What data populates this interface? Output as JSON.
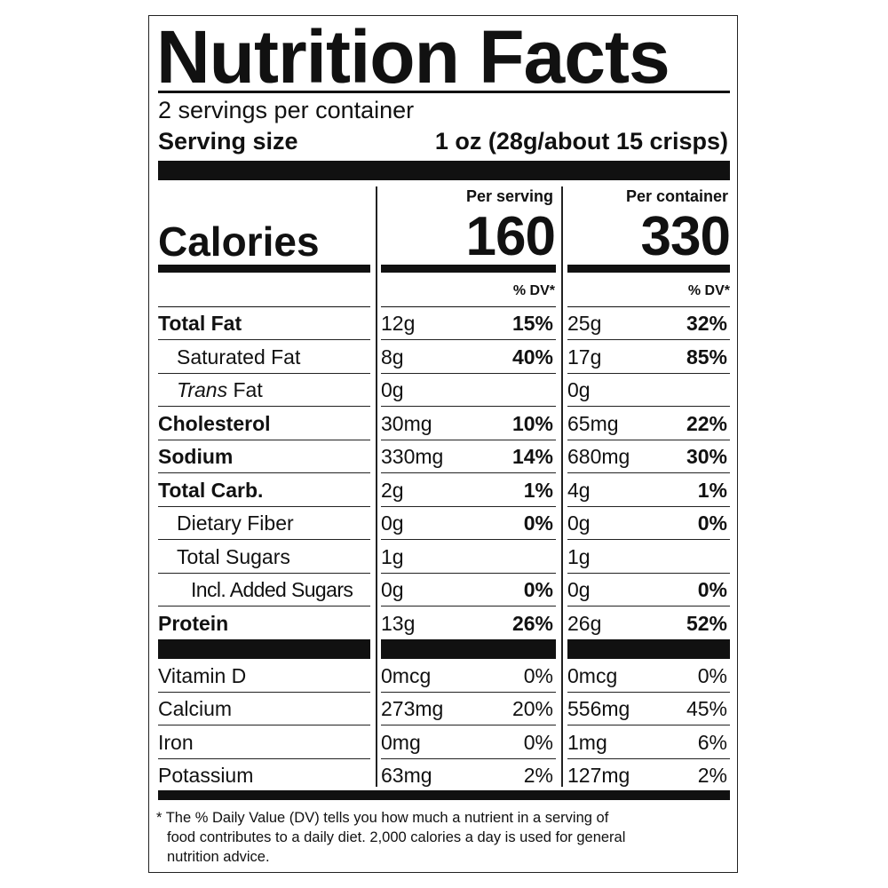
{
  "title": "Nutrition Facts",
  "servings_per_container": "2 servings per container",
  "serving_size_label": "Serving size",
  "serving_size_value": "1 oz (28g/about 15 crisps)",
  "per_serving_label": "Per serving",
  "per_container_label": "Per container",
  "calories_label": "Calories",
  "calories_per_serving": "160",
  "calories_per_container": "330",
  "dv_label": "% DV*",
  "nutrients": [
    {
      "name": "Total Fat",
      "name_prefix": "",
      "style": "bold",
      "indent": 0,
      "serving_amount": "12g",
      "serving_dv": "15%",
      "container_amount": "25g",
      "container_dv": "32%"
    },
    {
      "name": "Saturated Fat",
      "name_prefix": "",
      "style": "normal",
      "indent": 1,
      "serving_amount": "8g",
      "serving_dv": "40%",
      "container_amount": "17g",
      "container_dv": "85%"
    },
    {
      "name": " Fat",
      "name_prefix": "Trans",
      "style": "normal",
      "indent": 1,
      "serving_amount": "0g",
      "serving_dv": "",
      "container_amount": "0g",
      "container_dv": ""
    },
    {
      "name": "Cholesterol",
      "name_prefix": "",
      "style": "bold",
      "indent": 0,
      "serving_amount": "30mg",
      "serving_dv": "10%",
      "container_amount": "65mg",
      "container_dv": "22%"
    },
    {
      "name": "Sodium",
      "name_prefix": "",
      "style": "bold",
      "indent": 0,
      "serving_amount": "330mg",
      "serving_dv": "14%",
      "container_amount": "680mg",
      "container_dv": "30%"
    },
    {
      "name": "Total Carb.",
      "name_prefix": "",
      "style": "bold",
      "indent": 0,
      "serving_amount": "2g",
      "serving_dv": "1%",
      "container_amount": "4g",
      "container_dv": "1%"
    },
    {
      "name": "Dietary Fiber",
      "name_prefix": "",
      "style": "normal",
      "indent": 1,
      "serving_amount": "0g",
      "serving_dv": "0%",
      "container_amount": "0g",
      "container_dv": "0%"
    },
    {
      "name": "Total Sugars",
      "name_prefix": "",
      "style": "normal",
      "indent": 1,
      "serving_amount": "1g",
      "serving_dv": "",
      "container_amount": "1g",
      "container_dv": ""
    },
    {
      "name": "Incl. Added Sugars",
      "name_prefix": "",
      "style": "normal",
      "indent": 2,
      "serving_amount": "0g",
      "serving_dv": "0%",
      "container_amount": "0g",
      "container_dv": "0%"
    },
    {
      "name": "Protein",
      "name_prefix": "",
      "style": "bold",
      "indent": 0,
      "serving_amount": "13g",
      "serving_dv": "26%",
      "container_amount": "26g",
      "container_dv": "52%"
    }
  ],
  "vitamins": [
    {
      "name": "Vitamin D",
      "serving_amount": "0mcg",
      "serving_dv": "0%",
      "container_amount": "0mcg",
      "container_dv": "0%"
    },
    {
      "name": "Calcium",
      "serving_amount": "273mg",
      "serving_dv": "20%",
      "container_amount": "556mg",
      "container_dv": "45%"
    },
    {
      "name": "Iron",
      "serving_amount": "0mg",
      "serving_dv": "0%",
      "container_amount": "1mg",
      "container_dv": "6%"
    },
    {
      "name": "Potassium",
      "serving_amount": "63mg",
      "serving_dv": "2%",
      "container_amount": "127mg",
      "container_dv": "2%"
    }
  ],
  "footnote_line1": "* The % Daily Value (DV) tells you how much a nutrient in a serving of",
  "footnote_line2": "food contributes to a daily diet. 2,000 calories a day is used for general",
  "footnote_line3": "nutrition advice."
}
